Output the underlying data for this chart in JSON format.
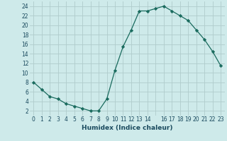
{
  "x": [
    0,
    1,
    2,
    3,
    4,
    5,
    6,
    7,
    8,
    9,
    10,
    11,
    12,
    13,
    14,
    15,
    16,
    17,
    18,
    19,
    20,
    21,
    22,
    23
  ],
  "y": [
    8,
    6.5,
    5,
    4.5,
    3.5,
    3,
    2.5,
    2,
    2,
    4.5,
    10.5,
    15.5,
    19,
    23,
    23,
    23.5,
    24,
    23,
    22,
    21,
    19,
    17,
    14.5,
    11.5
  ],
  "line_color": "#1a6b5e",
  "marker": "D",
  "marker_size": 2.2,
  "bg_color": "#ceeaea",
  "grid_color": "#b0cccc",
  "xlabel": "Humidex (Indice chaleur)",
  "xlim": [
    -0.5,
    23.5
  ],
  "ylim": [
    1,
    25
  ],
  "yticks": [
    2,
    4,
    6,
    8,
    10,
    12,
    14,
    16,
    18,
    20,
    22,
    24
  ],
  "xticks": [
    0,
    1,
    2,
    3,
    4,
    5,
    6,
    7,
    8,
    9,
    10,
    11,
    12,
    13,
    14,
    15,
    16,
    17,
    18,
    19,
    20,
    21,
    22,
    23
  ],
  "xtick_labels": [
    "0",
    "1",
    "2",
    "3",
    "4",
    "5",
    "6",
    "7",
    "8",
    "9",
    "10",
    "11",
    "12",
    "13",
    "14",
    "",
    "16",
    "17",
    "18",
    "19",
    "20",
    "21",
    "22",
    "23"
  ],
  "tick_color": "#1a4a5e",
  "label_fontsize": 6.5,
  "tick_fontsize": 5.5
}
